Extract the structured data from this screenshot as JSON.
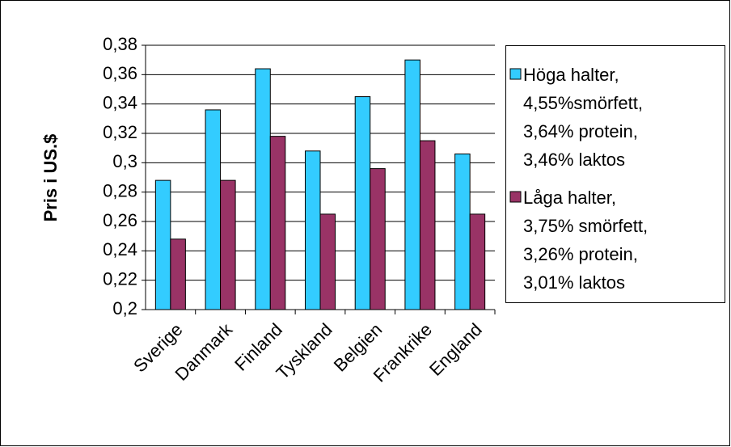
{
  "chart_data": {
    "type": "bar",
    "y_label": "Pris i US.$",
    "categories": [
      "Sverige",
      "Danmark",
      "Finland",
      "Tyskland",
      "Belgien",
      "Frankrike",
      "England"
    ],
    "series": [
      {
        "name": "Höga halter,\n4,55%smörfett,\n3,64% protein,\n3,46% laktos",
        "color": "#33ccff",
        "values": [
          0.288,
          0.336,
          0.364,
          0.308,
          0.345,
          0.37,
          0.306
        ]
      },
      {
        "name": "Låga halter,\n3,75% smörfett,\n3,26% protein,\n3,01% laktos",
        "color": "#993366",
        "values": [
          0.248,
          0.288,
          0.318,
          0.265,
          0.296,
          0.315,
          0.265
        ]
      }
    ],
    "ylim": [
      0.2,
      0.38
    ],
    "yticks": [
      {
        "value": 0.2,
        "label": "0,2"
      },
      {
        "value": 0.22,
        "label": "0,22"
      },
      {
        "value": 0.24,
        "label": "0,24"
      },
      {
        "value": 0.26,
        "label": "0,26"
      },
      {
        "value": 0.28,
        "label": "0,28"
      },
      {
        "value": 0.3,
        "label": "0,3"
      },
      {
        "value": 0.32,
        "label": "0,32"
      },
      {
        "value": 0.34,
        "label": "0,34"
      },
      {
        "value": 0.36,
        "label": "0,36"
      },
      {
        "value": 0.38,
        "label": "0,38"
      }
    ],
    "grid": true,
    "legend": "right"
  }
}
